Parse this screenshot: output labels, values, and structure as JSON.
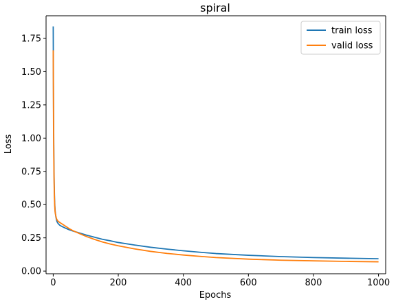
{
  "chart_data": {
    "type": "line",
    "title": "spiral",
    "xlabel": "Epochs",
    "ylabel": "Loss",
    "xlim": [
      -22,
      1022
    ],
    "ylim": [
      -0.02,
      1.92
    ],
    "xticks": [
      0,
      200,
      400,
      600,
      800,
      1000
    ],
    "xtick_labels": [
      "0",
      "200",
      "400",
      "600",
      "800",
      "1000"
    ],
    "yticks": [
      0.0,
      0.25,
      0.5,
      0.75,
      1.0,
      1.25,
      1.5,
      1.75
    ],
    "ytick_labels": [
      "0.00",
      "0.25",
      "0.50",
      "0.75",
      "1.00",
      "1.25",
      "1.50",
      "1.75"
    ],
    "grid": false,
    "legend_position": "top-right",
    "series": [
      {
        "name": "train loss",
        "color": "#1f77b4",
        "x": [
          0,
          1,
          2,
          3,
          4,
          5,
          6,
          8,
          10,
          12,
          15,
          18,
          20,
          25,
          30,
          40,
          50,
          60,
          80,
          100,
          125,
          150,
          175,
          200,
          250,
          300,
          350,
          400,
          450,
          500,
          600,
          700,
          800,
          900,
          1000
        ],
        "y": [
          1.84,
          1.2,
          0.85,
          0.66,
          0.55,
          0.49,
          0.45,
          0.41,
          0.385,
          0.37,
          0.358,
          0.35,
          0.345,
          0.338,
          0.332,
          0.32,
          0.31,
          0.302,
          0.287,
          0.272,
          0.256,
          0.24,
          0.228,
          0.215,
          0.196,
          0.179,
          0.165,
          0.153,
          0.142,
          0.132,
          0.119,
          0.109,
          0.102,
          0.097,
          0.093
        ]
      },
      {
        "name": "valid loss",
        "color": "#ff7f0e",
        "x": [
          0,
          1,
          2,
          3,
          4,
          5,
          6,
          8,
          10,
          12,
          15,
          18,
          20,
          25,
          30,
          40,
          50,
          60,
          80,
          100,
          125,
          150,
          175,
          200,
          250,
          300,
          350,
          400,
          450,
          500,
          600,
          700,
          800,
          900,
          1000
        ],
        "y": [
          1.66,
          1.1,
          0.8,
          0.63,
          0.53,
          0.47,
          0.44,
          0.415,
          0.395,
          0.385,
          0.375,
          0.37,
          0.366,
          0.358,
          0.35,
          0.334,
          0.318,
          0.305,
          0.283,
          0.262,
          0.24,
          0.22,
          0.204,
          0.19,
          0.167,
          0.148,
          0.133,
          0.121,
          0.111,
          0.102,
          0.09,
          0.082,
          0.077,
          0.073,
          0.07
        ]
      }
    ]
  }
}
